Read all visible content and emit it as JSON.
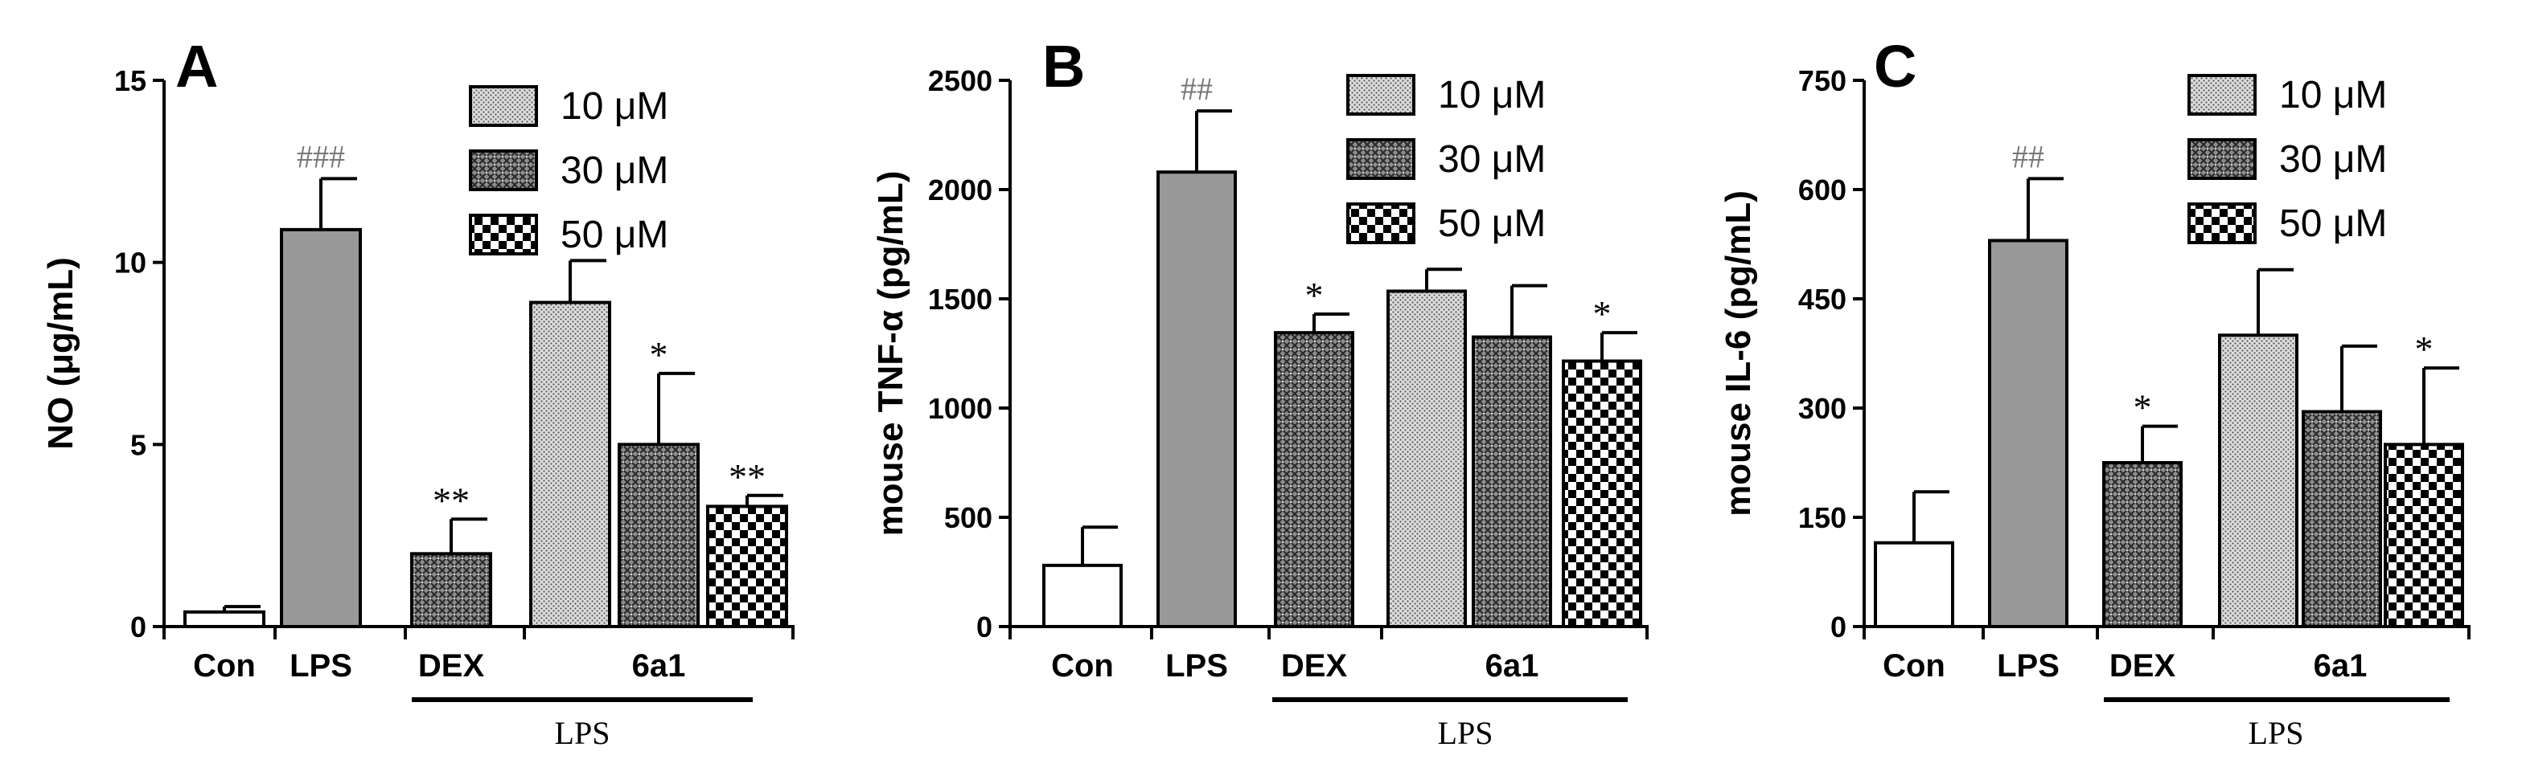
{
  "figure_type": "grouped bar chart with error bars",
  "chart_data": [
    {
      "type": "bar",
      "panel_label": "A",
      "ylabel": "NO (μg/mL)",
      "xlabel": "",
      "ylim": [
        0,
        15
      ],
      "yticks": [
        "0",
        "5",
        "10",
        "15"
      ],
      "categories": [
        "Con",
        "LPS",
        "DEX",
        "6a1"
      ],
      "bars": [
        {
          "name": "Con",
          "value": 0.4,
          "error": 0.15,
          "fill": "white",
          "label": ""
        },
        {
          "name": "LPS",
          "value": 10.9,
          "error": 1.4,
          "fill": "gray",
          "label": "###"
        },
        {
          "name": "DEX",
          "value": 2.0,
          "error": 0.95,
          "fill": "mesh",
          "label": "**"
        },
        {
          "name": "6a1 10 μM",
          "value": 8.9,
          "error": 1.15,
          "fill": "dots",
          "label": ""
        },
        {
          "name": "6a1 30 μM",
          "value": 5.0,
          "error": 1.95,
          "fill": "mesh",
          "label": "*"
        },
        {
          "name": "6a1 50 μM",
          "value": 3.3,
          "error": 0.3,
          "fill": "checker",
          "label": "**"
        }
      ],
      "legend": [
        "10 μM",
        "30 μM",
        "50 μM"
      ],
      "group_label": "LPS"
    },
    {
      "type": "bar",
      "panel_label": "B",
      "ylabel": "mouse TNF-α (pg/mL)",
      "xlabel": "",
      "ylim": [
        0,
        2500
      ],
      "yticks": [
        "0",
        "500",
        "1000",
        "1500",
        "2000",
        "2500"
      ],
      "categories": [
        "Con",
        "LPS",
        "DEX",
        "6a1"
      ],
      "bars": [
        {
          "name": "Con",
          "value": 280,
          "error": 175,
          "fill": "white",
          "label": ""
        },
        {
          "name": "LPS",
          "value": 2080,
          "error": 280,
          "fill": "gray",
          "label": "##"
        },
        {
          "name": "DEX",
          "value": 1345,
          "error": 85,
          "fill": "mesh",
          "label": "*"
        },
        {
          "name": "6a1 10 μM",
          "value": 1535,
          "error": 100,
          "fill": "dots",
          "label": ""
        },
        {
          "name": "6a1 30 μM",
          "value": 1325,
          "error": 235,
          "fill": "mesh",
          "label": ""
        },
        {
          "name": "6a1 50 μM",
          "value": 1215,
          "error": 130,
          "fill": "checker",
          "label": "*"
        }
      ],
      "legend": [
        "10 μM",
        "30 μM",
        "50 μM"
      ],
      "group_label": "LPS"
    },
    {
      "type": "bar",
      "panel_label": "C",
      "ylabel": "mouse IL-6 (pg/mL)",
      "xlabel": "",
      "ylim": [
        0,
        750
      ],
      "yticks": [
        "0",
        "150",
        "300",
        "450",
        "600",
        "750"
      ],
      "categories": [
        "Con",
        "LPS",
        "DEX",
        "6a1"
      ],
      "bars": [
        {
          "name": "Con",
          "value": 115,
          "error": 70,
          "fill": "white",
          "label": ""
        },
        {
          "name": "LPS",
          "value": 530,
          "error": 85,
          "fill": "gray",
          "label": "##"
        },
        {
          "name": "DEX",
          "value": 225,
          "error": 50,
          "fill": "mesh",
          "label": "*"
        },
        {
          "name": "6a1 10 μM",
          "value": 400,
          "error": 90,
          "fill": "dots",
          "label": ""
        },
        {
          "name": "6a1 30 μM",
          "value": 295,
          "error": 90,
          "fill": "mesh",
          "label": ""
        },
        {
          "name": "6a1 50 μM",
          "value": 250,
          "error": 105,
          "fill": "checker",
          "label": "*"
        }
      ],
      "legend": [
        "10 μM",
        "30 μM",
        "50 μM"
      ],
      "group_label": "LPS"
    }
  ]
}
